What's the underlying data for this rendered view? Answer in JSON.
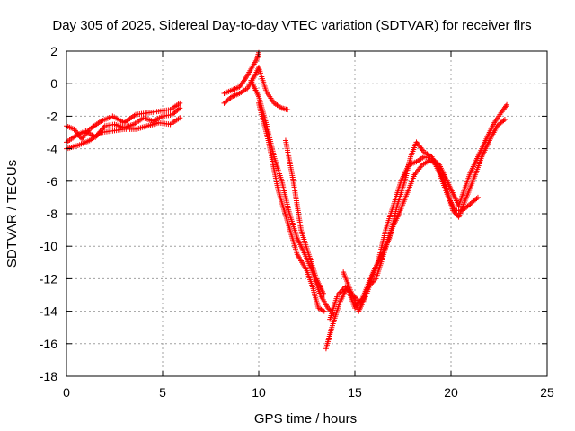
{
  "chart_data": {
    "type": "scatter",
    "title": "Day 305 of 2025, Sidereal Day-to-day VTEC variation (SDTVAR) for receiver flrs",
    "xlabel": "GPS time / hours",
    "ylabel": "SDTVAR / TECUs",
    "xlim": [
      0,
      25
    ],
    "ylim": [
      -18,
      2
    ],
    "xticks": [
      0,
      5,
      10,
      15,
      20,
      25
    ],
    "yticks": [
      -18,
      -16,
      -14,
      -12,
      -10,
      -8,
      -6,
      -4,
      -2,
      0,
      2
    ],
    "grid": true,
    "marker": "plus",
    "color": "#ff0000",
    "series": [
      {
        "traces": [
          [
            [
              0,
              -3.6
            ],
            [
              0.5,
              -3.2
            ],
            [
              1.0,
              -2.9
            ],
            [
              1.5,
              -3.3
            ],
            [
              2.0,
              -2.6
            ],
            [
              2.5,
              -2.5
            ],
            [
              3.0,
              -2.7
            ],
            [
              3.5,
              -2.5
            ],
            [
              4.0,
              -2.1
            ],
            [
              4.5,
              -2.3
            ],
            [
              5.0,
              -2.0
            ],
            [
              5.5,
              -1.9
            ],
            [
              5.9,
              -1.5
            ]
          ],
          [
            [
              0,
              -2.6
            ],
            [
              0.4,
              -2.8
            ],
            [
              0.8,
              -3.4
            ],
            [
              1.2,
              -2.8
            ],
            [
              1.8,
              -2.3
            ],
            [
              2.4,
              -2.0
            ],
            [
              3.0,
              -2.4
            ],
            [
              3.6,
              -1.9
            ],
            [
              4.2,
              -1.8
            ],
            [
              4.8,
              -1.7
            ],
            [
              5.4,
              -1.6
            ],
            [
              5.9,
              -1.2
            ]
          ],
          [
            [
              0,
              -4.0
            ],
            [
              0.6,
              -3.8
            ],
            [
              1.2,
              -3.5
            ],
            [
              1.8,
              -3.0
            ],
            [
              2.4,
              -2.9
            ],
            [
              3.0,
              -2.8
            ],
            [
              3.6,
              -2.8
            ],
            [
              4.2,
              -2.6
            ],
            [
              4.8,
              -2.4
            ],
            [
              5.4,
              -2.5
            ],
            [
              5.9,
              -2.1
            ]
          ],
          [
            [
              8.2,
              -0.6
            ],
            [
              8.6,
              -0.4
            ],
            [
              9.0,
              -0.2
            ],
            [
              9.3,
              0.3
            ],
            [
              9.6,
              0.9
            ],
            [
              9.9,
              1.5
            ],
            [
              10.0,
              1.9
            ]
          ],
          [
            [
              8.2,
              -1.2
            ],
            [
              8.6,
              -0.8
            ],
            [
              9.0,
              -0.6
            ],
            [
              9.4,
              -0.3
            ],
            [
              9.8,
              0.5
            ],
            [
              10.0,
              1.0
            ],
            [
              10.4,
              -0.5
            ],
            [
              10.8,
              -1.2
            ],
            [
              11.2,
              -1.5
            ],
            [
              11.5,
              -1.6
            ]
          ],
          [
            [
              9.6,
              0.2
            ],
            [
              10.0,
              -0.8
            ],
            [
              10.4,
              -2.5
            ],
            [
              10.8,
              -4.5
            ],
            [
              11.2,
              -6.0
            ],
            [
              11.6,
              -8.0
            ],
            [
              12.0,
              -9.5
            ],
            [
              12.4,
              -10.5
            ],
            [
              12.8,
              -11.6
            ],
            [
              13.2,
              -13.0
            ],
            [
              13.6,
              -13.8
            ],
            [
              13.9,
              -14.2
            ]
          ],
          [
            [
              10.0,
              -1.2
            ],
            [
              10.5,
              -3.5
            ],
            [
              11.0,
              -6.5
            ],
            [
              11.5,
              -8.5
            ],
            [
              12.0,
              -10.5
            ],
            [
              12.5,
              -11.5
            ],
            [
              12.8,
              -12.5
            ],
            [
              13.1,
              -13.8
            ],
            [
              13.4,
              -14.0
            ]
          ],
          [
            [
              11.4,
              -3.5
            ],
            [
              11.8,
              -6.0
            ],
            [
              12.2,
              -9.0
            ],
            [
              12.6,
              -10.5
            ],
            [
              13.0,
              -12.0
            ],
            [
              13.4,
              -13.0
            ]
          ],
          [
            [
              13.5,
              -16.3
            ],
            [
              13.8,
              -15.0
            ],
            [
              14.2,
              -13.5
            ],
            [
              14.6,
              -12.5
            ],
            [
              15.0,
              -13.8
            ],
            [
              15.4,
              -13.2
            ],
            [
              15.8,
              -12.0
            ],
            [
              16.2,
              -11.0
            ],
            [
              16.6,
              -9.0
            ],
            [
              17.0,
              -7.5
            ],
            [
              17.4,
              -6.0
            ],
            [
              17.8,
              -5.0
            ],
            [
              18.2,
              -4.8
            ],
            [
              18.6,
              -4.5
            ],
            [
              19.0,
              -4.6
            ],
            [
              19.4,
              -5.0
            ],
            [
              19.8,
              -6.0
            ],
            [
              20.2,
              -7.0
            ],
            [
              20.4,
              -7.5
            ],
            [
              20.7,
              -6.5
            ],
            [
              21.0,
              -5.5
            ],
            [
              21.4,
              -4.5
            ],
            [
              21.8,
              -3.5
            ],
            [
              22.2,
              -2.5
            ],
            [
              22.6,
              -1.8
            ],
            [
              22.9,
              -1.3
            ]
          ],
          [
            [
              13.7,
              -14.5
            ],
            [
              14.1,
              -13.0
            ],
            [
              14.5,
              -12.5
            ],
            [
              14.9,
              -13.0
            ],
            [
              15.3,
              -13.5
            ],
            [
              15.7,
              -12.5
            ],
            [
              16.1,
              -12.0
            ],
            [
              16.5,
              -10.5
            ],
            [
              16.9,
              -9.0
            ],
            [
              17.3,
              -8.0
            ],
            [
              17.7,
              -6.8
            ],
            [
              18.1,
              -5.6
            ],
            [
              18.5,
              -5.0
            ],
            [
              18.9,
              -4.7
            ],
            [
              19.3,
              -5.0
            ],
            [
              19.7,
              -6.2
            ],
            [
              20.1,
              -7.8
            ],
            [
              20.4,
              -8.2
            ],
            [
              20.8,
              -7.0
            ],
            [
              21.2,
              -5.8
            ],
            [
              21.6,
              -4.5
            ],
            [
              22.0,
              -3.5
            ],
            [
              22.4,
              -2.6
            ],
            [
              22.8,
              -2.2
            ]
          ],
          [
            [
              14.4,
              -11.6
            ],
            [
              14.8,
              -12.8
            ],
            [
              15.2,
              -14.0
            ],
            [
              15.6,
              -13.0
            ],
            [
              16.0,
              -11.5
            ],
            [
              16.4,
              -10.5
            ],
            [
              16.8,
              -9.5
            ],
            [
              17.2,
              -7.5
            ],
            [
              17.6,
              -6.0
            ],
            [
              17.9,
              -4.5
            ],
            [
              18.2,
              -3.6
            ],
            [
              18.6,
              -4.2
            ],
            [
              19.0,
              -4.5
            ],
            [
              19.4,
              -5.5
            ],
            [
              19.8,
              -6.8
            ],
            [
              20.2,
              -7.8
            ],
            [
              20.6,
              -7.8
            ],
            [
              21.0,
              -7.4
            ],
            [
              21.4,
              -7.0
            ]
          ]
        ]
      }
    ]
  }
}
